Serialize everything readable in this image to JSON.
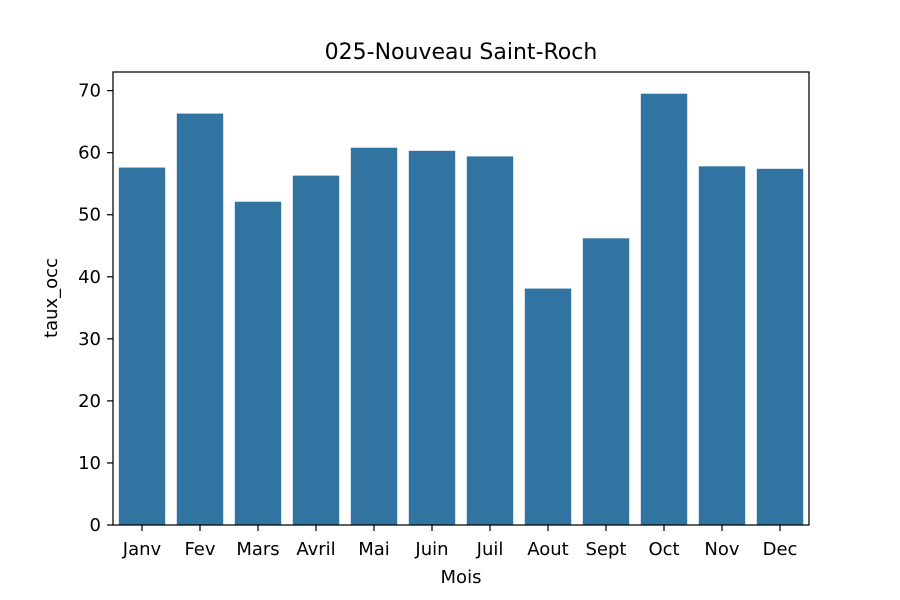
{
  "colors": {
    "bar": "#3274a1",
    "axis": "#000000",
    "background": "#ffffff"
  },
  "chart_data": {
    "type": "bar",
    "title": "025-Nouveau Saint-Roch",
    "xlabel": "Mois",
    "ylabel": "taux_occ",
    "categories": [
      "Janv",
      "Fev",
      "Mars",
      "Avril",
      "Mai",
      "Juin",
      "Juil",
      "Aout",
      "Sept",
      "Oct",
      "Nov",
      "Dec"
    ],
    "values": [
      57.6,
      66.3,
      52.1,
      56.3,
      60.8,
      60.3,
      59.4,
      38.1,
      46.2,
      69.5,
      57.8,
      57.4
    ],
    "ylim": [
      0,
      73
    ],
    "yticks": [
      0,
      10,
      20,
      30,
      40,
      50,
      60,
      70
    ],
    "grid": false
  }
}
